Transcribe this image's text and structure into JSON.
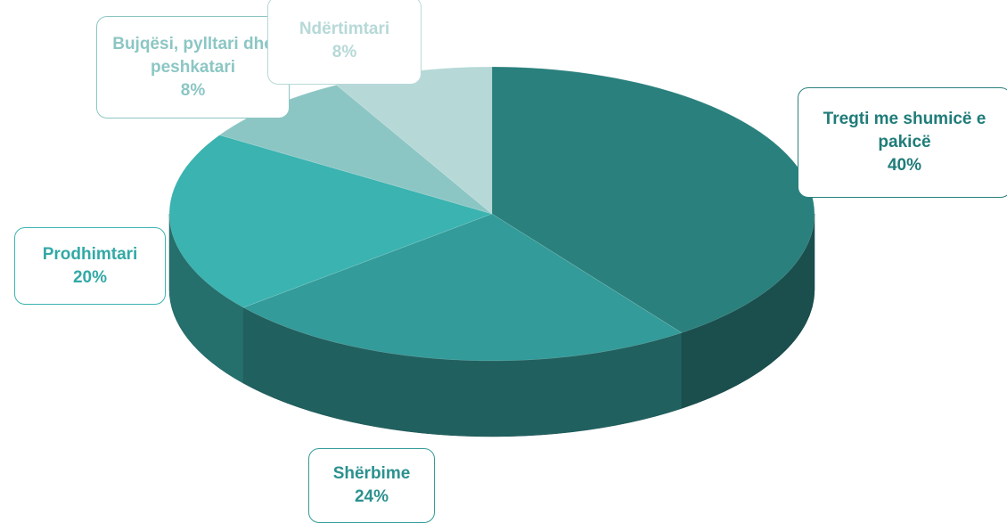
{
  "chart_data": {
    "type": "pie3d",
    "categories": [
      "Tregti me shumicë e pakicë",
      "Shërbime",
      "Prodhimtari",
      "Bujqësi, pylltari dhe peshkatari",
      "Ndërtimtari"
    ],
    "values": [
      40,
      24,
      20,
      8,
      8
    ],
    "value_labels": [
      "40%",
      "24%",
      "20%",
      "8%",
      "8%"
    ],
    "colors": [
      "#2a807d",
      "#339b99",
      "#3bb3b0",
      "#8cc6c4",
      "#b6d9d8"
    ]
  }
}
